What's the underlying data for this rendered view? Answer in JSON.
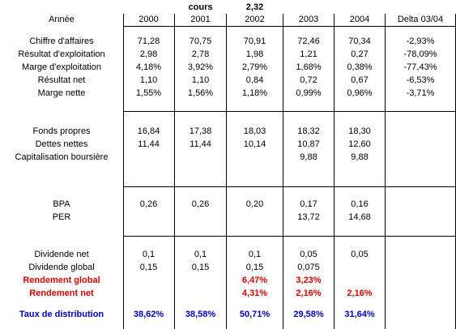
{
  "cours": {
    "label": "cours",
    "value": "2,32"
  },
  "header": {
    "label": "Année",
    "years": [
      "2000",
      "2001",
      "2002",
      "2003",
      "2004",
      "Delta 03/04"
    ]
  },
  "sections": [
    {
      "rows": [
        {
          "label": "Chiffre d'affaires",
          "values": [
            "71,28",
            "70,75",
            "70,91",
            "72,46",
            "70,34",
            "-2,93%"
          ]
        },
        {
          "label": "Résultat d'exploitation",
          "values": [
            "2,98",
            "2,78",
            "1,98",
            "1,21",
            "0,27",
            "-78,09%"
          ]
        },
        {
          "label": "Marge d'exploitation",
          "values": [
            "4,18%",
            "3,92%",
            "2,79%",
            "1,68%",
            "0,38%",
            "-77,43%"
          ]
        },
        {
          "label": "Résultat net",
          "values": [
            "1,10",
            "1,10",
            "0,84",
            "0,72",
            "0,67",
            "-6,53%"
          ]
        },
        {
          "label": "Marge nette",
          "values": [
            "1,55%",
            "1,56%",
            "1,18%",
            "0,99%",
            "0,96%",
            "-3,71%"
          ]
        }
      ]
    },
    {
      "rows": [
        {
          "label": "Fonds propres",
          "values": [
            "16,84",
            "17,38",
            "18,03",
            "18,32",
            "18,30",
            ""
          ]
        },
        {
          "label": "Dettes nettes",
          "values": [
            "11,44",
            "11,44",
            "10,14",
            "10,87",
            "12,60",
            ""
          ]
        },
        {
          "label": "Capitalisation boursière",
          "values": [
            "",
            "",
            "",
            "9,88",
            "9,88",
            ""
          ]
        }
      ]
    },
    {
      "rows": [
        {
          "label": "BPA",
          "values": [
            "0,26",
            "0,26",
            "0,20",
            "0,17",
            "0,16",
            ""
          ]
        },
        {
          "label": "PER",
          "values": [
            "",
            "",
            "",
            "13,72",
            "14,68",
            ""
          ]
        }
      ]
    },
    {
      "rows": [
        {
          "label": "Dividende net",
          "values": [
            "0,1",
            "0,1",
            "0,1",
            "0,05",
            "0,05",
            ""
          ]
        },
        {
          "label": "Dividende global",
          "values": [
            "0,15",
            "0,15",
            "0,15",
            "0,075",
            "",
            ""
          ]
        },
        {
          "label": "Rendement global",
          "style": "red",
          "values": [
            "",
            "",
            "6,47%",
            "3,23%",
            "",
            ""
          ]
        },
        {
          "label": "Rendement net",
          "style": "red",
          "values": [
            "",
            "",
            "4,31%",
            "2,16%",
            "2,16%",
            ""
          ]
        }
      ]
    }
  ],
  "footer": {
    "label": "Taux de distribution",
    "style": "blue",
    "values": [
      "38,62%",
      "38,58%",
      "50,71%",
      "29,58%",
      "31,64%",
      ""
    ]
  },
  "colors": {
    "red": "#e00000",
    "blue": "#0000cc"
  }
}
